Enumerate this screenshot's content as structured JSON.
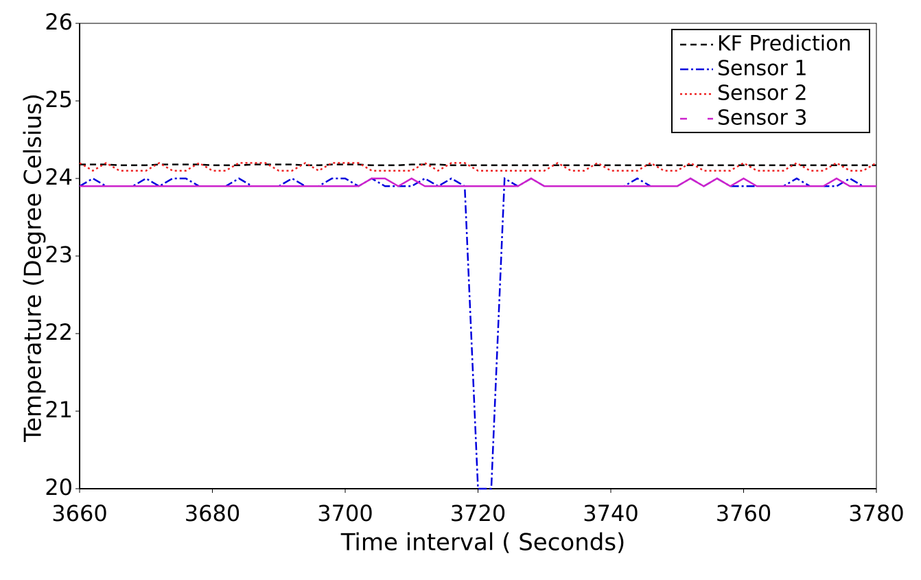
{
  "chart_data": {
    "type": "line",
    "xlabel": "Time interval ( Seconds)",
    "ylabel": "Temperature (Degree Celsius)",
    "x": [
      3660,
      3662,
      3664,
      3666,
      3668,
      3670,
      3672,
      3674,
      3676,
      3678,
      3680,
      3682,
      3684,
      3686,
      3688,
      3690,
      3692,
      3694,
      3696,
      3698,
      3700,
      3702,
      3704,
      3706,
      3708,
      3710,
      3712,
      3714,
      3716,
      3718,
      3720,
      3722,
      3724,
      3726,
      3728,
      3730,
      3732,
      3734,
      3736,
      3738,
      3740,
      3742,
      3744,
      3746,
      3748,
      3750,
      3752,
      3754,
      3756,
      3758,
      3760,
      3762,
      3764,
      3766,
      3768,
      3770,
      3772,
      3774,
      3776,
      3778,
      3780
    ],
    "series": [
      {
        "name": "KF Prediction",
        "color": "#000000",
        "dash": "9,6",
        "values": [
          24.18,
          24.18,
          24.18,
          24.17,
          24.17,
          24.17,
          24.18,
          24.18,
          24.18,
          24.18,
          24.17,
          24.17,
          24.17,
          24.18,
          24.18,
          24.18,
          24.18,
          24.17,
          24.17,
          24.18,
          24.18,
          24.18,
          24.17,
          24.17,
          24.17,
          24.18,
          24.18,
          24.18,
          24.17,
          24.17,
          24.17,
          24.17,
          24.17,
          24.17,
          24.17,
          24.17,
          24.17,
          24.17,
          24.17,
          24.17,
          24.17,
          24.17,
          24.17,
          24.17,
          24.17,
          24.17,
          24.17,
          24.17,
          24.17,
          24.17,
          24.17,
          24.17,
          24.17,
          24.17,
          24.17,
          24.17,
          24.17,
          24.17,
          24.17,
          24.17,
          24.17
        ]
      },
      {
        "name": "Sensor 1",
        "color": "#0000dd",
        "dash": "12,4,3,4",
        "values": [
          23.9,
          24.0,
          23.9,
          23.9,
          23.9,
          24.0,
          23.9,
          24.0,
          24.0,
          23.9,
          23.9,
          23.9,
          24.0,
          23.9,
          23.9,
          23.9,
          24.0,
          23.9,
          23.9,
          24.0,
          24.0,
          23.9,
          24.0,
          23.9,
          23.9,
          23.9,
          24.0,
          23.9,
          24.0,
          23.9,
          20,
          20,
          24.0,
          23.9,
          24.0,
          23.9,
          23.9,
          23.9,
          23.9,
          23.9,
          23.9,
          23.9,
          24.0,
          23.9,
          23.9,
          23.9,
          24.0,
          23.9,
          24.0,
          23.9,
          23.9,
          23.9,
          23.9,
          23.9,
          24.0,
          23.9,
          23.9,
          23.9,
          24.0,
          23.9,
          23.9
        ]
      },
      {
        "name": "Sensor 2",
        "color": "#ee2222",
        "dash": "3,4",
        "values": [
          24.2,
          24.1,
          24.2,
          24.1,
          24.1,
          24.1,
          24.2,
          24.1,
          24.1,
          24.2,
          24.1,
          24.1,
          24.2,
          24.2,
          24.2,
          24.1,
          24.1,
          24.2,
          24.1,
          24.2,
          24.2,
          24.2,
          24.1,
          24.1,
          24.1,
          24.1,
          24.2,
          24.1,
          24.2,
          24.2,
          24.1,
          24.1,
          24.1,
          24.1,
          24.1,
          24.1,
          24.2,
          24.1,
          24.1,
          24.2,
          24.1,
          24.1,
          24.1,
          24.2,
          24.1,
          24.1,
          24.2,
          24.1,
          24.1,
          24.1,
          24.2,
          24.1,
          24.1,
          24.1,
          24.2,
          24.1,
          24.1,
          24.2,
          24.1,
          24.1,
          24.2
        ]
      },
      {
        "name": "Sensor 3",
        "color": "#cc22cc",
        "dash": "",
        "values": [
          23.9,
          23.9,
          23.9,
          23.9,
          23.9,
          23.9,
          23.9,
          23.9,
          23.9,
          23.9,
          23.9,
          23.9,
          23.9,
          23.9,
          23.9,
          23.9,
          23.9,
          23.9,
          23.9,
          23.9,
          23.9,
          23.9,
          24.0,
          24.0,
          23.9,
          24.0,
          23.9,
          23.9,
          23.9,
          23.9,
          23.9,
          23.9,
          23.9,
          23.9,
          24.0,
          23.9,
          23.9,
          23.9,
          23.9,
          23.9,
          23.9,
          23.9,
          23.9,
          23.9,
          23.9,
          23.9,
          24.0,
          23.9,
          24.0,
          23.9,
          24.0,
          23.9,
          23.9,
          23.9,
          23.9,
          23.9,
          23.9,
          24.0,
          23.9,
          23.9,
          23.9
        ]
      }
    ],
    "xlim": [
      3660,
      3780
    ],
    "xticks": [
      3660,
      3680,
      3700,
      3720,
      3740,
      3760,
      3780
    ],
    "ylim": [
      20,
      26
    ],
    "yticks": [
      20,
      21,
      22,
      23,
      24,
      25,
      26
    ],
    "legend": "upper right"
  }
}
